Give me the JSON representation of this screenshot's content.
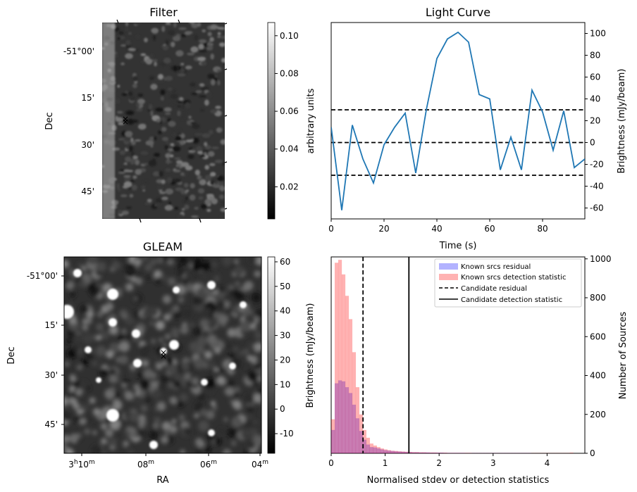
{
  "chart_data": [
    {
      "panel": "filter",
      "type": "heatmap",
      "title": "Filter",
      "ylabel": "Dec",
      "y_ticks": [
        "-51°00'",
        "15'",
        "30'",
        "45'"
      ],
      "colorbar": {
        "label": "arbitrary units",
        "ticks": [
          "0.02",
          "0.04",
          "0.06",
          "0.08",
          "0.10"
        ],
        "range": [
          0.003,
          0.107
        ],
        "cmap": "gray"
      },
      "markers": [
        {
          "symbol": "×",
          "color": "#0000ff"
        },
        {
          "symbol": "×",
          "color": "#ff0000"
        }
      ]
    },
    {
      "panel": "light-curve",
      "type": "line",
      "title": "Light Curve",
      "xlabel": "Time (s)",
      "ylabel": "Brightness (mJy/beam)",
      "xlim": [
        0,
        96
      ],
      "ylim": [
        -70,
        110
      ],
      "x_ticks": [
        0,
        20,
        40,
        60,
        80
      ],
      "y_ticks": [
        -60,
        -40,
        -20,
        0,
        20,
        40,
        60,
        80,
        100
      ],
      "series": [
        {
          "color": "#1f77b4",
          "x": [
            0,
            4,
            8,
            12,
            16,
            20,
            24,
            28,
            32,
            36,
            40,
            44,
            48,
            52,
            56,
            60,
            64,
            68,
            72,
            76,
            80,
            84,
            88,
            92,
            96
          ],
          "y": [
            14,
            -62,
            16,
            -15,
            -37,
            -2,
            14,
            27,
            -28,
            30,
            77,
            95,
            101,
            92,
            44,
            40,
            -25,
            5,
            -25,
            48,
            28,
            -7,
            29,
            -23,
            -15
          ]
        }
      ],
      "hlines": [
        {
          "y": 30,
          "style": "dashed"
        },
        {
          "y": 0,
          "style": "dashed"
        },
        {
          "y": -30,
          "style": "dashed"
        }
      ]
    },
    {
      "panel": "gleam",
      "type": "heatmap",
      "title": "GLEAM",
      "xlabel": "RA",
      "ylabel": "Dec",
      "x_ticks": [
        "3h10m",
        "08m",
        "06m",
        "04m"
      ],
      "y_ticks": [
        "-51°00'",
        "15'",
        "30'",
        "45'"
      ],
      "colorbar": {
        "label": "Brightness (mJy/beam)",
        "ticks": [
          "-10",
          "0",
          "10",
          "20",
          "30",
          "40",
          "50",
          "60"
        ],
        "range": [
          -18,
          62
        ],
        "cmap": "gray"
      },
      "markers": [
        {
          "symbol": "×",
          "color": "#0000ff"
        },
        {
          "symbol": "×",
          "color": "#ff0000"
        }
      ]
    },
    {
      "panel": "histogram",
      "type": "bar",
      "xlabel": "Normalised stdev or detection statistics",
      "ylabel": "Number of Sources",
      "xlim": [
        0,
        4.7
      ],
      "ylim": [
        0,
        1010
      ],
      "x_ticks": [
        0,
        1,
        2,
        3,
        4
      ],
      "y_ticks": [
        0,
        200,
        400,
        600,
        800,
        1000
      ],
      "bin_width": 0.065,
      "series": [
        {
          "name": "Known srcs residual",
          "color": "#0000ff",
          "values": [
            120,
            360,
            375,
            370,
            340,
            310,
            250,
            180,
            115,
            70,
            45,
            32,
            30,
            25,
            20,
            16,
            14,
            12,
            10,
            9,
            8,
            7,
            6,
            5,
            5,
            4,
            4,
            4,
            3,
            3,
            3,
            3,
            2,
            2,
            2,
            2,
            2,
            2,
            1,
            1,
            1,
            1,
            1,
            1,
            1,
            1,
            1,
            1,
            1,
            1,
            1,
            1,
            1,
            1,
            1,
            1,
            1,
            0,
            0,
            0,
            0,
            0,
            0,
            0,
            0,
            0,
            0,
            0,
            0,
            0,
            0,
            0
          ]
        },
        {
          "name": "Known srcs detection statistic",
          "color": "#ff0000",
          "values": [
            175,
            980,
            995,
            920,
            810,
            690,
            520,
            340,
            200,
            120,
            80,
            50,
            40,
            32,
            25,
            20,
            16,
            13,
            12,
            10,
            9,
            8,
            7,
            6,
            6,
            5,
            5,
            4,
            4,
            4,
            3,
            3,
            3,
            2,
            2,
            2,
            2,
            2,
            2,
            2,
            1,
            1,
            1,
            1,
            1,
            1,
            1,
            1,
            1,
            1,
            1,
            1,
            1,
            1,
            1,
            1,
            1,
            1,
            1,
            1,
            1,
            1,
            1,
            1,
            1,
            1,
            1,
            1,
            3,
            0,
            0,
            0
          ]
        }
      ],
      "vlines": [
        {
          "name": "Candidate residual",
          "x": 0.59,
          "style": "dashed"
        },
        {
          "name": "Candidate detection statistic",
          "x": 1.44,
          "style": "solid"
        }
      ],
      "left_axis_label": "Brightness (mJy/beam)",
      "legend_position": "top-right"
    }
  ]
}
